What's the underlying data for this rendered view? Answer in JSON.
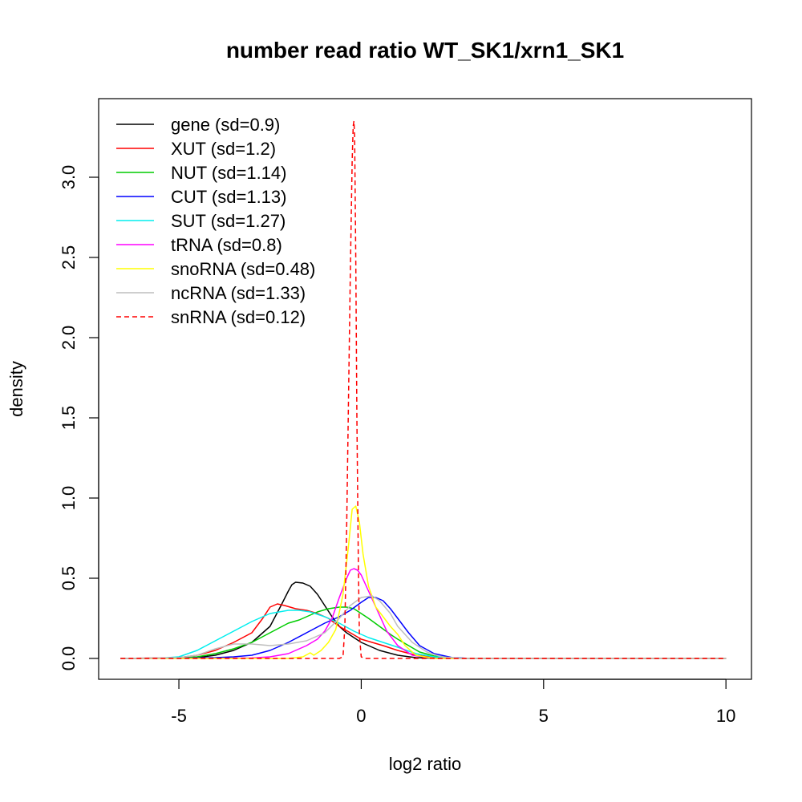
{
  "chart_data": {
    "type": "line",
    "title": "number read ratio WT_SK1/xrn1_SK1",
    "xlabel": "log2 ratio",
    "ylabel": "density",
    "xlim": [
      -7.2,
      10.7
    ],
    "ylim": [
      -0.13,
      3.49
    ],
    "x_ticks": [
      -5,
      0,
      5,
      10
    ],
    "x_tick_labels": [
      "-5",
      "0",
      "5",
      "10"
    ],
    "y_ticks": [
      0.0,
      0.5,
      1.0,
      1.5,
      2.0,
      2.5,
      3.0
    ],
    "y_tick_labels": [
      "0.0",
      "0.5",
      "1.0",
      "1.5",
      "2.0",
      "2.5",
      "3.0"
    ],
    "legend_position": "top-left",
    "grid": false,
    "series": [
      {
        "name": "gene",
        "label": "gene (sd=0.9)",
        "color": "#000000",
        "dash": false,
        "x": [
          -6.6,
          -5,
          -4.5,
          -4,
          -3.5,
          -3,
          -2.5,
          -2.2,
          -2,
          -1.9,
          -1.8,
          -1.6,
          -1.4,
          -1.2,
          -1,
          -0.8,
          -0.6,
          -0.4,
          -0.2,
          0,
          0.2,
          0.5,
          1,
          1.5,
          2,
          3,
          10
        ],
        "y": [
          0,
          0.002,
          0.005,
          0.02,
          0.05,
          0.1,
          0.2,
          0.33,
          0.42,
          0.46,
          0.475,
          0.47,
          0.45,
          0.4,
          0.33,
          0.26,
          0.2,
          0.16,
          0.13,
          0.1,
          0.08,
          0.05,
          0.02,
          0.005,
          0.001,
          0,
          0
        ]
      },
      {
        "name": "XUT",
        "label": "XUT (sd=1.2)",
        "color": "#ff0000",
        "dash": false,
        "x": [
          -6.6,
          -5,
          -4.5,
          -4,
          -3.5,
          -3,
          -2.7,
          -2.5,
          -2.3,
          -2.1,
          -1.8,
          -1.5,
          -1.2,
          -0.9,
          -0.6,
          -0.3,
          0,
          0.3,
          0.6,
          1,
          1.5,
          2,
          2.5,
          3,
          10
        ],
        "y": [
          0,
          0.005,
          0.02,
          0.05,
          0.1,
          0.16,
          0.25,
          0.32,
          0.34,
          0.33,
          0.31,
          0.3,
          0.28,
          0.25,
          0.2,
          0.16,
          0.12,
          0.1,
          0.08,
          0.05,
          0.02,
          0.008,
          0.002,
          0,
          0
        ]
      },
      {
        "name": "NUT",
        "label": "NUT (sd=1.14)",
        "color": "#00cc00",
        "dash": false,
        "x": [
          -6.6,
          -5,
          -4.5,
          -4,
          -3.5,
          -3,
          -2.5,
          -2,
          -1.7,
          -1.5,
          -1.2,
          -0.9,
          -0.6,
          -0.4,
          -0.2,
          0,
          0.2,
          0.5,
          0.8,
          1,
          1.3,
          1.6,
          2,
          2.5,
          3,
          10
        ],
        "y": [
          0,
          0.002,
          0.01,
          0.03,
          0.06,
          0.1,
          0.16,
          0.22,
          0.24,
          0.26,
          0.29,
          0.31,
          0.32,
          0.32,
          0.31,
          0.28,
          0.25,
          0.2,
          0.15,
          0.12,
          0.08,
          0.04,
          0.015,
          0.004,
          0,
          0
        ]
      },
      {
        "name": "CUT",
        "label": "CUT (sd=1.13)",
        "color": "#0000ff",
        "dash": false,
        "x": [
          -6.6,
          -5,
          -4,
          -3.5,
          -3,
          -2.5,
          -2,
          -1.5,
          -1,
          -0.6,
          -0.3,
          0,
          0.2,
          0.4,
          0.6,
          0.8,
          1,
          1.3,
          1.6,
          2,
          2.5,
          3,
          10
        ],
        "y": [
          0,
          0.001,
          0.005,
          0.01,
          0.02,
          0.05,
          0.1,
          0.16,
          0.22,
          0.26,
          0.3,
          0.35,
          0.38,
          0.38,
          0.36,
          0.31,
          0.25,
          0.16,
          0.08,
          0.03,
          0.005,
          0,
          0
        ]
      },
      {
        "name": "SUT",
        "label": "SUT (sd=1.27)",
        "color": "#00eeee",
        "dash": false,
        "x": [
          -6.6,
          -5.5,
          -5,
          -4.5,
          -4,
          -3.5,
          -3,
          -2.5,
          -2,
          -1.7,
          -1.4,
          -1,
          -0.6,
          -0.2,
          0.2,
          0.6,
          1,
          1.5,
          2,
          2.5,
          3,
          10
        ],
        "y": [
          0,
          0.002,
          0.01,
          0.05,
          0.11,
          0.17,
          0.23,
          0.28,
          0.3,
          0.3,
          0.29,
          0.26,
          0.22,
          0.17,
          0.13,
          0.1,
          0.07,
          0.03,
          0.01,
          0.002,
          0,
          0
        ]
      },
      {
        "name": "tRNA",
        "label": "tRNA (sd=0.8)",
        "color": "#ff00ff",
        "dash": false,
        "x": [
          -6.6,
          -4,
          -3,
          -2.5,
          -2,
          -1.5,
          -1.2,
          -1,
          -0.8,
          -0.6,
          -0.4,
          -0.3,
          -0.2,
          -0.1,
          0,
          0.2,
          0.4,
          0.7,
          1,
          1.4,
          2,
          10
        ],
        "y": [
          0,
          0,
          0.003,
          0.01,
          0.03,
          0.08,
          0.12,
          0.17,
          0.25,
          0.38,
          0.5,
          0.55,
          0.56,
          0.55,
          0.52,
          0.42,
          0.32,
          0.17,
          0.08,
          0.02,
          0,
          0
        ]
      },
      {
        "name": "snoRNA",
        "label": "snoRNA (sd=0.48)",
        "color": "#ffff00",
        "dash": false,
        "x": [
          -6.6,
          -2,
          -1.6,
          -1.4,
          -1.3,
          -1.1,
          -0.9,
          -0.7,
          -0.5,
          -0.35,
          -0.25,
          -0.15,
          -0.05,
          0.05,
          0.2,
          0.4,
          0.6,
          0.8,
          1,
          1.2,
          1.5,
          2,
          10
        ],
        "y": [
          0,
          0,
          0.01,
          0.035,
          0.02,
          0.05,
          0.1,
          0.18,
          0.4,
          0.7,
          0.93,
          0.95,
          0.85,
          0.65,
          0.45,
          0.32,
          0.26,
          0.2,
          0.15,
          0.08,
          0.02,
          0,
          0
        ]
      },
      {
        "name": "ncRNA",
        "label": "ncRNA (sd=1.33)",
        "color": "#bebebe",
        "dash": false,
        "x": [
          -6.6,
          -5,
          -4.5,
          -4,
          -3.5,
          -3,
          -2.5,
          -2,
          -1.5,
          -1,
          -0.6,
          -0.3,
          0,
          0.3,
          0.5,
          0.8,
          1,
          1.4,
          1.8,
          2.2,
          2.8,
          10
        ],
        "y": [
          0,
          0.005,
          0.02,
          0.06,
          0.09,
          0.09,
          0.08,
          0.09,
          0.11,
          0.16,
          0.25,
          0.33,
          0.38,
          0.39,
          0.36,
          0.28,
          0.2,
          0.1,
          0.04,
          0.01,
          0,
          0
        ]
      },
      {
        "name": "snRNA",
        "label": "snRNA (sd=0.12)",
        "color": "#ff0000",
        "dash": true,
        "x": [
          -6.6,
          -0.6,
          -0.5,
          -0.45,
          -0.4,
          -0.35,
          -0.3,
          -0.25,
          -0.22,
          -0.2,
          -0.18,
          -0.15,
          -0.12,
          -0.08,
          -0.05,
          0,
          0.1,
          10
        ],
        "y": [
          0,
          0,
          0.01,
          0.2,
          0.8,
          1.6,
          2.4,
          3.1,
          3.32,
          3.35,
          3.25,
          2.5,
          1.5,
          0.6,
          0.15,
          0.01,
          0,
          0
        ]
      }
    ]
  }
}
